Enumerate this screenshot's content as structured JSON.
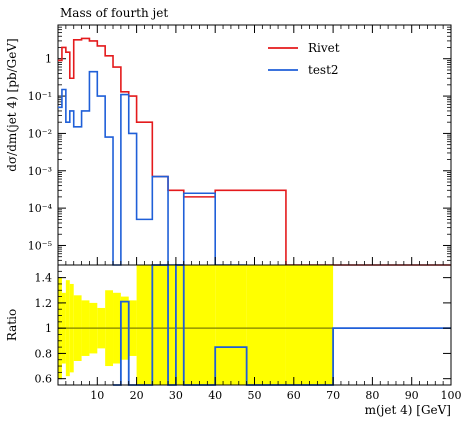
{
  "chart_data": [
    {
      "type": "line",
      "title": "Mass of fourth jet",
      "ylabel": "dσ/dm(jet 4) [pb/GeV]",
      "xlim": [
        0,
        100
      ],
      "ylim": [
        3e-06,
        8
      ],
      "yscale": "log",
      "yticks": [
        {
          "value": 1e-05,
          "label": "10⁻⁵"
        },
        {
          "value": 0.0001,
          "label": "10⁻⁴"
        },
        {
          "value": 0.001,
          "label": "10⁻³"
        },
        {
          "value": 0.01,
          "label": "10⁻²"
        },
        {
          "value": 0.1,
          "label": "10⁻¹"
        },
        {
          "value": 1,
          "label": "1"
        }
      ],
      "legend_position": "top-right",
      "series": [
        {
          "name": "Rivet",
          "color": "#e41a1c",
          "edges": [
            0,
            1,
            2,
            3,
            4,
            6,
            8,
            10,
            12,
            14,
            16,
            18,
            20,
            24,
            28,
            32,
            40,
            48,
            58,
            70,
            100
          ],
          "values": [
            0.9,
            2.0,
            1.5,
            0.3,
            3.2,
            3.5,
            3.0,
            2.2,
            1.2,
            0.6,
            0.13,
            0.1,
            0.02,
            0.0007,
            0.0003,
            0.0002,
            0.0003,
            0.0003,
            3e-06,
            3e-06
          ]
        },
        {
          "name": "test2",
          "color": "#1f5fd8",
          "edges": [
            0,
            1,
            2,
            3,
            4,
            6,
            8,
            10,
            12,
            14,
            16,
            18,
            20,
            24,
            28,
            32,
            40,
            48
          ],
          "values": [
            0.05,
            0.15,
            0.02,
            0.04,
            0.015,
            0.04,
            0.45,
            0.1,
            0.008,
            0.0,
            0.11,
            0.01,
            5e-05,
            0.0007,
            1.2e-06,
            0.00025,
            1.2e-06
          ]
        }
      ]
    },
    {
      "type": "line",
      "ylabel": "Ratio",
      "xlabel": "m(jet 4) [GeV]",
      "xlim": [
        0,
        100
      ],
      "ylim": [
        0.55,
        1.5
      ],
      "yticks": [
        {
          "value": 0.6,
          "label": "0.6"
        },
        {
          "value": 0.8,
          "label": "0.8"
        },
        {
          "value": 1.0,
          "label": "1"
        },
        {
          "value": 1.2,
          "label": "1.2"
        },
        {
          "value": 1.4,
          "label": "1.4"
        }
      ],
      "xticks": [
        {
          "value": 10,
          "label": "10"
        },
        {
          "value": 20,
          "label": "20"
        },
        {
          "value": 30,
          "label": "30"
        },
        {
          "value": 40,
          "label": "40"
        },
        {
          "value": 50,
          "label": "50"
        },
        {
          "value": 60,
          "label": "60"
        },
        {
          "value": 70,
          "label": "70"
        },
        {
          "value": 80,
          "label": "80"
        },
        {
          "value": 90,
          "label": "90"
        },
        {
          "value": 100,
          "label": "100"
        }
      ],
      "reference_line": 1.0,
      "reference_color": "#808000",
      "band_color": "#ffff00",
      "band": {
        "edges": [
          0,
          1,
          2,
          3,
          4,
          6,
          8,
          10,
          12,
          14,
          16,
          18,
          20,
          24,
          28,
          32,
          40,
          48,
          58,
          70
        ],
        "low": [
          0.6,
          0.72,
          0.62,
          0.65,
          0.74,
          0.78,
          0.8,
          0.84,
          0.7,
          0.72,
          0.75,
          0.78,
          0.55,
          0.55,
          0.55,
          0.55,
          0.55,
          0.55,
          0.55
        ],
        "high": [
          1.4,
          1.28,
          1.38,
          1.35,
          1.26,
          1.22,
          1.2,
          1.16,
          1.3,
          1.28,
          1.25,
          1.22,
          1.5,
          1.5,
          1.5,
          1.5,
          1.5,
          1.5,
          1.5
        ]
      },
      "ratio_series": {
        "name": "test2",
        "color": "#1f5fd8",
        "edges": [
          14,
          16,
          18,
          20,
          24,
          28,
          30,
          32,
          40,
          48,
          70,
          100
        ],
        "values": [
          0.3,
          1.21,
          0.4,
          0.3,
          1.5,
          0.3,
          1.5,
          0.3,
          0.85,
          0.3,
          1.0
        ]
      }
    }
  ]
}
